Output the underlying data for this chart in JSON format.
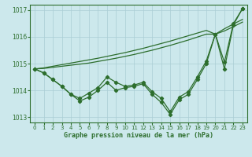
{
  "xlabel": "Graphe pression niveau de la mer (hPa)",
  "background_color": "#cce8ec",
  "grid_color": "#aacdd4",
  "line_color": "#2d6e2d",
  "xlim": [
    -0.5,
    23.5
  ],
  "ylim": [
    1012.8,
    1017.2
  ],
  "yticks": [
    1013,
    1014,
    1015,
    1016,
    1017
  ],
  "xticks": [
    0,
    1,
    2,
    3,
    4,
    5,
    6,
    7,
    8,
    9,
    10,
    11,
    12,
    13,
    14,
    15,
    16,
    17,
    18,
    19,
    20,
    21,
    22,
    23
  ],
  "x": [
    0,
    1,
    2,
    3,
    4,
    5,
    6,
    7,
    8,
    9,
    10,
    11,
    12,
    13,
    14,
    15,
    16,
    17,
    18,
    19,
    20,
    21,
    22,
    23
  ],
  "line_zigzag1": [
    1014.8,
    1014.65,
    1014.4,
    1014.15,
    1013.85,
    1013.6,
    1013.75,
    1014.0,
    1014.3,
    1014.0,
    1014.1,
    1014.15,
    1014.25,
    1013.85,
    1013.55,
    1013.1,
    1013.65,
    1013.85,
    1014.4,
    1015.0,
    1016.1,
    1014.8,
    1016.45,
    1017.05
  ],
  "line_zigzag2": [
    1014.8,
    1014.65,
    1014.4,
    1014.15,
    1013.85,
    1013.7,
    1013.9,
    1014.1,
    1014.5,
    1014.3,
    1014.15,
    1014.2,
    1014.3,
    1013.95,
    1013.7,
    1013.2,
    1013.75,
    1013.95,
    1014.5,
    1015.1,
    1016.1,
    1015.05,
    1016.5,
    1017.05
  ],
  "line_smooth1": [
    1014.8,
    1014.82,
    1014.86,
    1014.9,
    1014.94,
    1014.98,
    1015.02,
    1015.08,
    1015.14,
    1015.2,
    1015.27,
    1015.34,
    1015.42,
    1015.5,
    1015.59,
    1015.68,
    1015.78,
    1015.88,
    1015.99,
    1016.1,
    1016.1,
    1016.22,
    1016.38,
    1016.55
  ],
  "line_smooth2": [
    1014.8,
    1014.84,
    1014.9,
    1014.96,
    1015.02,
    1015.08,
    1015.14,
    1015.2,
    1015.27,
    1015.34,
    1015.41,
    1015.49,
    1015.57,
    1015.66,
    1015.75,
    1015.84,
    1015.94,
    1016.04,
    1016.14,
    1016.24,
    1016.1,
    1016.3,
    1016.48,
    1016.65
  ]
}
